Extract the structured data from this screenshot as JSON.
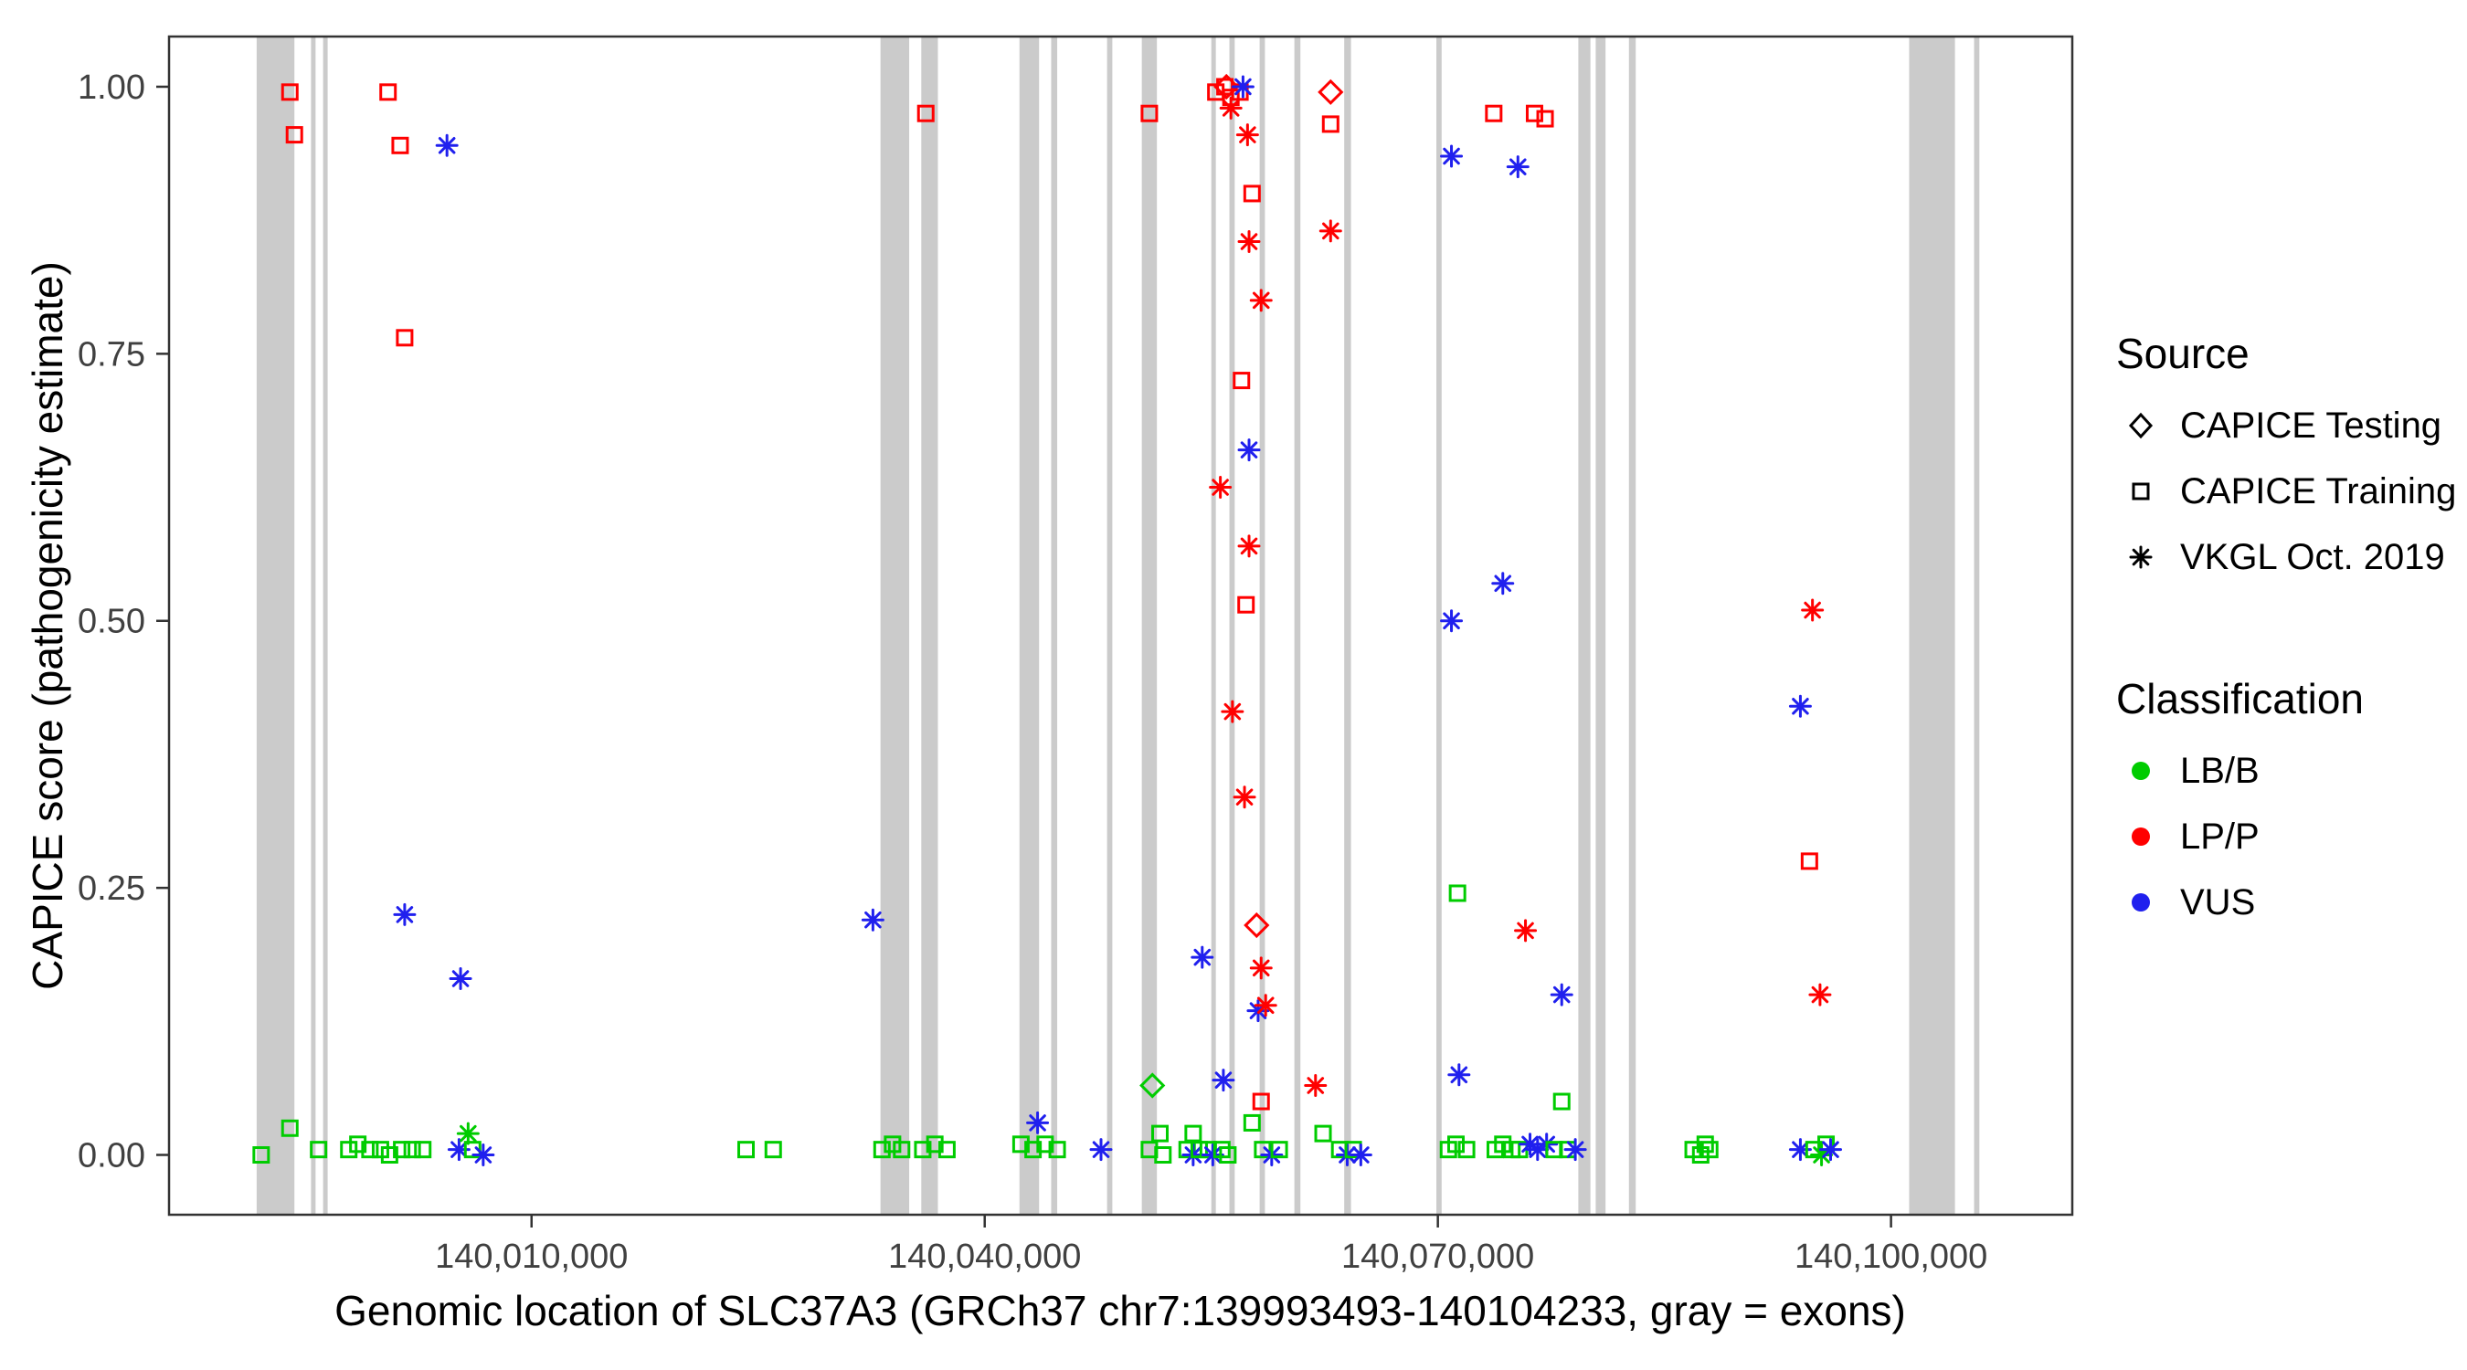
{
  "legend": {
    "source": {
      "title": "Source",
      "items": [
        {
          "label": "CAPICE Testing",
          "shape": "diamond-outline"
        },
        {
          "label": "CAPICE Training",
          "shape": "square-outline"
        },
        {
          "label": "VKGL Oct. 2019",
          "shape": "asterisk"
        }
      ]
    },
    "classification": {
      "title": "Classification",
      "items": [
        {
          "label": "LB/B",
          "color": "#00CC00"
        },
        {
          "label": "LP/P",
          "color": "#FF0000"
        },
        {
          "label": "VUS",
          "color": "#2020EE"
        }
      ]
    }
  },
  "chart_data": {
    "type": "scatter",
    "title": "",
    "xlabel": "Genomic location of SLC37A3 (GRCh37 chr7:139993493-140104233, gray = exons)",
    "ylabel": "CAPICE score (pathogenicity estimate)",
    "legend_position": "right",
    "grid": false,
    "x_domain": [
      139986000,
      140112000
    ],
    "y_domain": [
      -0.056,
      1.047
    ],
    "x_ticks": [
      {
        "value": 140010000,
        "label": "140,010,000"
      },
      {
        "value": 140040000,
        "label": "140,040,000"
      },
      {
        "value": 140070000,
        "label": "140,070,000"
      },
      {
        "value": 140100000,
        "label": "140,100,000"
      }
    ],
    "y_ticks": [
      {
        "value": 0.0,
        "label": "0.00"
      },
      {
        "value": 0.25,
        "label": "0.25"
      },
      {
        "value": 0.5,
        "label": "0.50"
      },
      {
        "value": 0.75,
        "label": "0.75"
      },
      {
        "value": 1.0,
        "label": "1.00"
      }
    ],
    "exon_color": "#CBCBCB",
    "class_colors": {
      "LB/B": "#00CC00",
      "LP/P": "#FF0000",
      "VUS": "#2020EE"
    },
    "source_codes": {
      "te": "CAPICE Testing",
      "tr": "CAPICE Training",
      "vk": "VKGL Oct. 2019"
    },
    "classification_codes": {
      "b": "LB/B",
      "p": "LP/P",
      "v": "VUS"
    },
    "exons": [
      [
        139991800,
        139994300
      ],
      [
        139995400,
        139995700
      ],
      [
        139996200,
        139996500
      ],
      [
        140033100,
        140035000
      ],
      [
        140035800,
        140036900
      ],
      [
        140042300,
        140043600
      ],
      [
        140044400,
        140044800
      ],
      [
        140048100,
        140048450
      ],
      [
        140050400,
        140051400
      ],
      [
        140055000,
        140055300
      ],
      [
        140056200,
        140056550
      ],
      [
        140058200,
        140058550
      ],
      [
        140060500,
        140060900
      ],
      [
        140063800,
        140064250
      ],
      [
        140069900,
        140070250
      ],
      [
        140079300,
        140080100
      ],
      [
        140080450,
        140081100
      ],
      [
        140082650,
        140083100
      ],
      [
        140101200,
        140104233
      ],
      [
        140105500,
        140105850
      ]
    ],
    "points_format": [
      "genomic_position",
      "capice_score",
      "source_code",
      "classification_code"
    ],
    "points": [
      [
        139992100,
        0.0,
        "tr",
        "b"
      ],
      [
        139994000,
        0.995,
        "tr",
        "p"
      ],
      [
        139994300,
        0.955,
        "tr",
        "p"
      ],
      [
        139994000,
        0.025,
        "tr",
        "b"
      ],
      [
        139995900,
        0.005,
        "tr",
        "b"
      ],
      [
        139997900,
        0.005,
        "tr",
        "b"
      ],
      [
        139998500,
        0.01,
        "tr",
        "b"
      ],
      [
        139999300,
        0.005,
        "tr",
        "b"
      ],
      [
        140000000,
        0.005,
        "tr",
        "b"
      ],
      [
        140000600,
        0.0,
        "tr",
        "b"
      ],
      [
        140001400,
        0.005,
        "tr",
        "b"
      ],
      [
        140002100,
        0.005,
        "tr",
        "b"
      ],
      [
        140002800,
        0.005,
        "tr",
        "b"
      ],
      [
        140000500,
        0.995,
        "tr",
        "p"
      ],
      [
        140001300,
        0.945,
        "tr",
        "p"
      ],
      [
        140001600,
        0.765,
        "tr",
        "p"
      ],
      [
        140001600,
        0.225,
        "vk",
        "v"
      ],
      [
        140004400,
        0.945,
        "vk",
        "v"
      ],
      [
        140005300,
        0.165,
        "vk",
        "v"
      ],
      [
        140005200,
        0.005,
        "vk",
        "v"
      ],
      [
        140005800,
        0.02,
        "vk",
        "b"
      ],
      [
        140006100,
        0.005,
        "tr",
        "b"
      ],
      [
        140006800,
        0.0,
        "vk",
        "v"
      ],
      [
        140024200,
        0.005,
        "tr",
        "b"
      ],
      [
        140026000,
        0.005,
        "tr",
        "b"
      ],
      [
        140032600,
        0.22,
        "vk",
        "v"
      ],
      [
        140033200,
        0.005,
        "tr",
        "b"
      ],
      [
        140033900,
        0.01,
        "tr",
        "b"
      ],
      [
        140034500,
        0.005,
        "tr",
        "b"
      ],
      [
        140036100,
        0.975,
        "tr",
        "p"
      ],
      [
        140035900,
        0.005,
        "tr",
        "b"
      ],
      [
        140036700,
        0.01,
        "tr",
        "b"
      ],
      [
        140037500,
        0.005,
        "tr",
        "b"
      ],
      [
        140042400,
        0.01,
        "tr",
        "b"
      ],
      [
        140043200,
        0.005,
        "tr",
        "b"
      ],
      [
        140043500,
        0.03,
        "vk",
        "v"
      ],
      [
        140044000,
        0.01,
        "tr",
        "b"
      ],
      [
        140044800,
        0.005,
        "tr",
        "b"
      ],
      [
        140047700,
        0.005,
        "vk",
        "v"
      ],
      [
        140050900,
        0.975,
        "tr",
        "p"
      ],
      [
        140051100,
        0.065,
        "te",
        "b"
      ],
      [
        140050900,
        0.005,
        "tr",
        "b"
      ],
      [
        140051600,
        0.02,
        "tr",
        "b"
      ],
      [
        140051800,
        0.0,
        "tr",
        "b"
      ],
      [
        140053400,
        0.005,
        "tr",
        "b"
      ],
      [
        140053800,
        0.0,
        "vk",
        "v"
      ],
      [
        140053800,
        0.02,
        "tr",
        "b"
      ],
      [
        140054200,
        0.005,
        "tr",
        "b"
      ],
      [
        140054400,
        0.185,
        "vk",
        "v"
      ],
      [
        140054800,
        0.005,
        "tr",
        "b"
      ],
      [
        140055100,
        0.0,
        "vk",
        "v"
      ],
      [
        140055300,
        0.995,
        "tr",
        "p"
      ],
      [
        140055600,
        0.625,
        "vk",
        "p"
      ],
      [
        140055900,
        1.0,
        "tr",
        "p"
      ],
      [
        140056000,
        1.0,
        "te",
        "p"
      ],
      [
        140055700,
        0.005,
        "tr",
        "b"
      ],
      [
        140056300,
        0.99,
        "tr",
        "p"
      ],
      [
        140056300,
        0.98,
        "vk",
        "p"
      ],
      [
        140055800,
        0.07,
        "vk",
        "v"
      ],
      [
        140056100,
        0.0,
        "tr",
        "b"
      ],
      [
        140056400,
        0.415,
        "vk",
        "p"
      ],
      [
        140056900,
        0.995,
        "tr",
        "p"
      ],
      [
        140057100,
        1.0,
        "vk",
        "v"
      ],
      [
        140057000,
        0.725,
        "tr",
        "p"
      ],
      [
        140057200,
        0.335,
        "vk",
        "p"
      ],
      [
        140057400,
        0.955,
        "vk",
        "p"
      ],
      [
        140057500,
        0.855,
        "vk",
        "p"
      ],
      [
        140057500,
        0.66,
        "vk",
        "v"
      ],
      [
        140057500,
        0.57,
        "vk",
        "p"
      ],
      [
        140057300,
        0.515,
        "tr",
        "p"
      ],
      [
        140057700,
        0.9,
        "tr",
        "p"
      ],
      [
        140057700,
        0.03,
        "tr",
        "b"
      ],
      [
        140058300,
        0.8,
        "vk",
        "p"
      ],
      [
        140058000,
        0.215,
        "te",
        "p"
      ],
      [
        140058300,
        0.175,
        "vk",
        "p"
      ],
      [
        140058100,
        0.135,
        "vk",
        "v"
      ],
      [
        140058600,
        0.14,
        "vk",
        "p"
      ],
      [
        140058300,
        0.05,
        "tr",
        "p"
      ],
      [
        140058400,
        0.005,
        "tr",
        "b"
      ],
      [
        140059000,
        0.0,
        "vk",
        "v"
      ],
      [
        140059500,
        0.005,
        "tr",
        "b"
      ],
      [
        140062900,
        0.995,
        "te",
        "p"
      ],
      [
        140062900,
        0.965,
        "tr",
        "p"
      ],
      [
        140062900,
        0.865,
        "vk",
        "p"
      ],
      [
        140061900,
        0.065,
        "vk",
        "p"
      ],
      [
        140062400,
        0.02,
        "tr",
        "b"
      ],
      [
        140063500,
        0.005,
        "tr",
        "b"
      ],
      [
        140064000,
        0.0,
        "vk",
        "v"
      ],
      [
        140064400,
        0.005,
        "tr",
        "b"
      ],
      [
        140064900,
        0.0,
        "vk",
        "v"
      ],
      [
        140070900,
        0.935,
        "vk",
        "v"
      ],
      [
        140070900,
        0.5,
        "vk",
        "v"
      ],
      [
        140071400,
        0.075,
        "vk",
        "v"
      ],
      [
        140071300,
        0.245,
        "tr",
        "b"
      ],
      [
        140070700,
        0.005,
        "tr",
        "b"
      ],
      [
        140071200,
        0.01,
        "tr",
        "b"
      ],
      [
        140071900,
        0.005,
        "tr",
        "b"
      ],
      [
        140073700,
        0.975,
        "tr",
        "p"
      ],
      [
        140074300,
        0.535,
        "vk",
        "v"
      ],
      [
        140073800,
        0.005,
        "tr",
        "b"
      ],
      [
        140074300,
        0.01,
        "tr",
        "b"
      ],
      [
        140074900,
        0.005,
        "tr",
        "b"
      ],
      [
        140075300,
        0.925,
        "vk",
        "v"
      ],
      [
        140075400,
        0.005,
        "tr",
        "b"
      ],
      [
        140075800,
        0.21,
        "vk",
        "p"
      ],
      [
        140076100,
        0.01,
        "vk",
        "v"
      ],
      [
        140076400,
        0.975,
        "tr",
        "p"
      ],
      [
        140077100,
        0.97,
        "tr",
        "p"
      ],
      [
        140076600,
        0.005,
        "vk",
        "v"
      ],
      [
        140077200,
        0.01,
        "vk",
        "v"
      ],
      [
        140077700,
        0.005,
        "tr",
        "b"
      ],
      [
        140078200,
        0.15,
        "vk",
        "v"
      ],
      [
        140078200,
        0.05,
        "tr",
        "b"
      ],
      [
        140078600,
        0.005,
        "tr",
        "b"
      ],
      [
        140079100,
        0.005,
        "vk",
        "v"
      ],
      [
        140086900,
        0.005,
        "tr",
        "b"
      ],
      [
        140087400,
        0.0,
        "tr",
        "b"
      ],
      [
        140087700,
        0.01,
        "tr",
        "b"
      ],
      [
        140088000,
        0.005,
        "tr",
        "b"
      ],
      [
        140094800,
        0.51,
        "vk",
        "p"
      ],
      [
        140094000,
        0.42,
        "vk",
        "v"
      ],
      [
        140094600,
        0.275,
        "tr",
        "p"
      ],
      [
        140095300,
        0.15,
        "vk",
        "p"
      ],
      [
        140094000,
        0.005,
        "vk",
        "v"
      ],
      [
        140094900,
        0.005,
        "tr",
        "b"
      ],
      [
        140095400,
        0.0,
        "vk",
        "b"
      ],
      [
        140095700,
        0.01,
        "tr",
        "b"
      ],
      [
        140096000,
        0.005,
        "vk",
        "v"
      ]
    ]
  }
}
